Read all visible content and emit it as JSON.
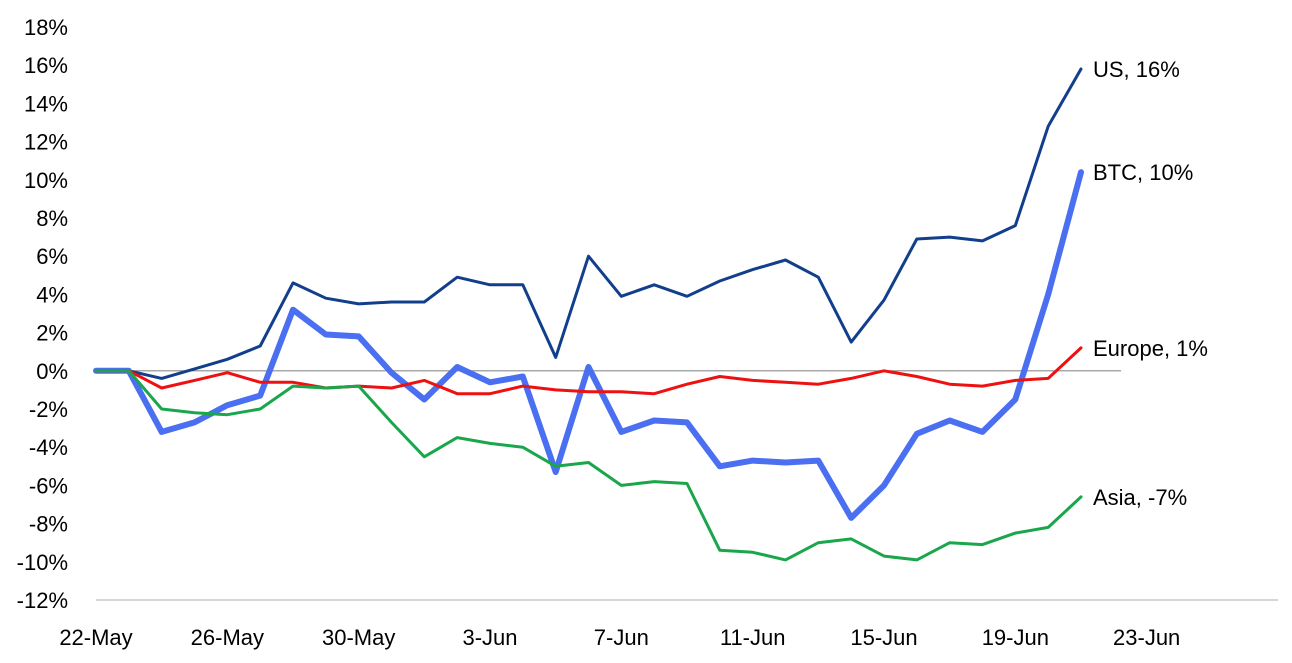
{
  "chart_data": {
    "type": "line",
    "title": "",
    "xlabel": "",
    "ylabel": "",
    "ylim": [
      -12,
      18
    ],
    "y_ticks": [
      -12,
      -10,
      -8,
      -6,
      -4,
      -2,
      0,
      2,
      4,
      6,
      8,
      10,
      12,
      14,
      16,
      18
    ],
    "y_tick_labels": [
      "-12%",
      "-10%",
      "-8%",
      "-6%",
      "-4%",
      "-2%",
      "0%",
      "2%",
      "4%",
      "6%",
      "8%",
      "10%",
      "12%",
      "14%",
      "16%",
      "18%"
    ],
    "x_tick_labels": [
      "22-May",
      "26-May",
      "30-May",
      "3-Jun",
      "7-Jun",
      "11-Jun",
      "15-Jun",
      "19-Jun",
      "23-Jun"
    ],
    "x_tick_days": [
      0,
      4,
      8,
      12,
      16,
      20,
      24,
      28,
      32
    ],
    "grid": false,
    "legend": "none",
    "series": [
      {
        "name": "US",
        "end_label": "US, 16%",
        "color": "#123f8c",
        "width": 3,
        "x": [
          0,
          1,
          2,
          3,
          4,
          5,
          6,
          7,
          8,
          9,
          10,
          11,
          12,
          13,
          14,
          15,
          16,
          17,
          18,
          19,
          20,
          21,
          22,
          23,
          24,
          25,
          26,
          27,
          28,
          29,
          30
        ],
        "values": [
          0,
          0,
          -0.4,
          0.1,
          0.6,
          1.3,
          4.6,
          3.8,
          3.5,
          3.6,
          3.6,
          4.9,
          4.5,
          4.5,
          0.7,
          6.0,
          3.9,
          4.5,
          3.9,
          4.7,
          5.3,
          5.8,
          4.9,
          1.5,
          3.7,
          6.9,
          7.0,
          6.8,
          7.6,
          12.8,
          15.8
        ]
      },
      {
        "name": "BTC",
        "end_label": "BTC, 10%",
        "color": "#4a6ff0",
        "width": 6,
        "x": [
          0,
          1,
          2,
          3,
          4,
          5,
          6,
          7,
          8,
          9,
          10,
          11,
          12,
          13,
          14,
          15,
          16,
          17,
          18,
          19,
          20,
          21,
          22,
          23,
          24,
          25,
          26,
          27,
          28,
          29,
          30
        ],
        "values": [
          0,
          0,
          -3.2,
          -2.7,
          -1.8,
          -1.3,
          3.2,
          1.9,
          1.8,
          -0.1,
          -1.5,
          0.2,
          -0.6,
          -0.3,
          -5.3,
          0.2,
          -3.2,
          -2.6,
          -2.7,
          -5.0,
          -4.7,
          -4.8,
          -4.7,
          -7.7,
          -6.0,
          -3.3,
          -2.6,
          -3.2,
          -1.5,
          4.0,
          10.4
        ]
      },
      {
        "name": "Europe",
        "end_label": "Europe, 1%",
        "color": "#ee1111",
        "width": 3,
        "x": [
          0,
          1,
          2,
          3,
          4,
          5,
          6,
          7,
          8,
          9,
          10,
          11,
          12,
          13,
          14,
          15,
          16,
          17,
          18,
          19,
          20,
          21,
          22,
          23,
          24,
          25,
          26,
          27,
          28,
          29,
          30
        ],
        "values": [
          0,
          0,
          -0.9,
          -0.5,
          -0.1,
          -0.6,
          -0.6,
          -0.9,
          -0.8,
          -0.9,
          -0.5,
          -1.2,
          -1.2,
          -0.8,
          -1.0,
          -1.1,
          -1.1,
          -1.2,
          -0.7,
          -0.3,
          -0.5,
          -0.6,
          -0.7,
          -0.4,
          0.0,
          -0.3,
          -0.7,
          -0.8,
          -0.5,
          -0.4,
          1.2
        ]
      },
      {
        "name": "Asia",
        "end_label": "Asia, -7%",
        "color": "#1aa64a",
        "width": 3,
        "x": [
          0,
          1,
          2,
          3,
          4,
          5,
          6,
          7,
          8,
          9,
          10,
          11,
          12,
          13,
          14,
          15,
          16,
          17,
          18,
          19,
          20,
          21,
          22,
          23,
          24,
          25,
          26,
          27,
          28,
          29,
          30
        ],
        "values": [
          0,
          0,
          -2.0,
          -2.2,
          -2.3,
          -2.0,
          -0.8,
          -0.9,
          -0.8,
          -2.7,
          -4.5,
          -3.5,
          -3.8,
          -4.0,
          -5.0,
          -4.8,
          -6.0,
          -5.8,
          -5.9,
          -9.4,
          -9.5,
          -9.9,
          -9.0,
          -8.8,
          -9.7,
          -9.9,
          -9.0,
          -9.1,
          -8.5,
          -8.2,
          -6.6
        ]
      }
    ]
  }
}
